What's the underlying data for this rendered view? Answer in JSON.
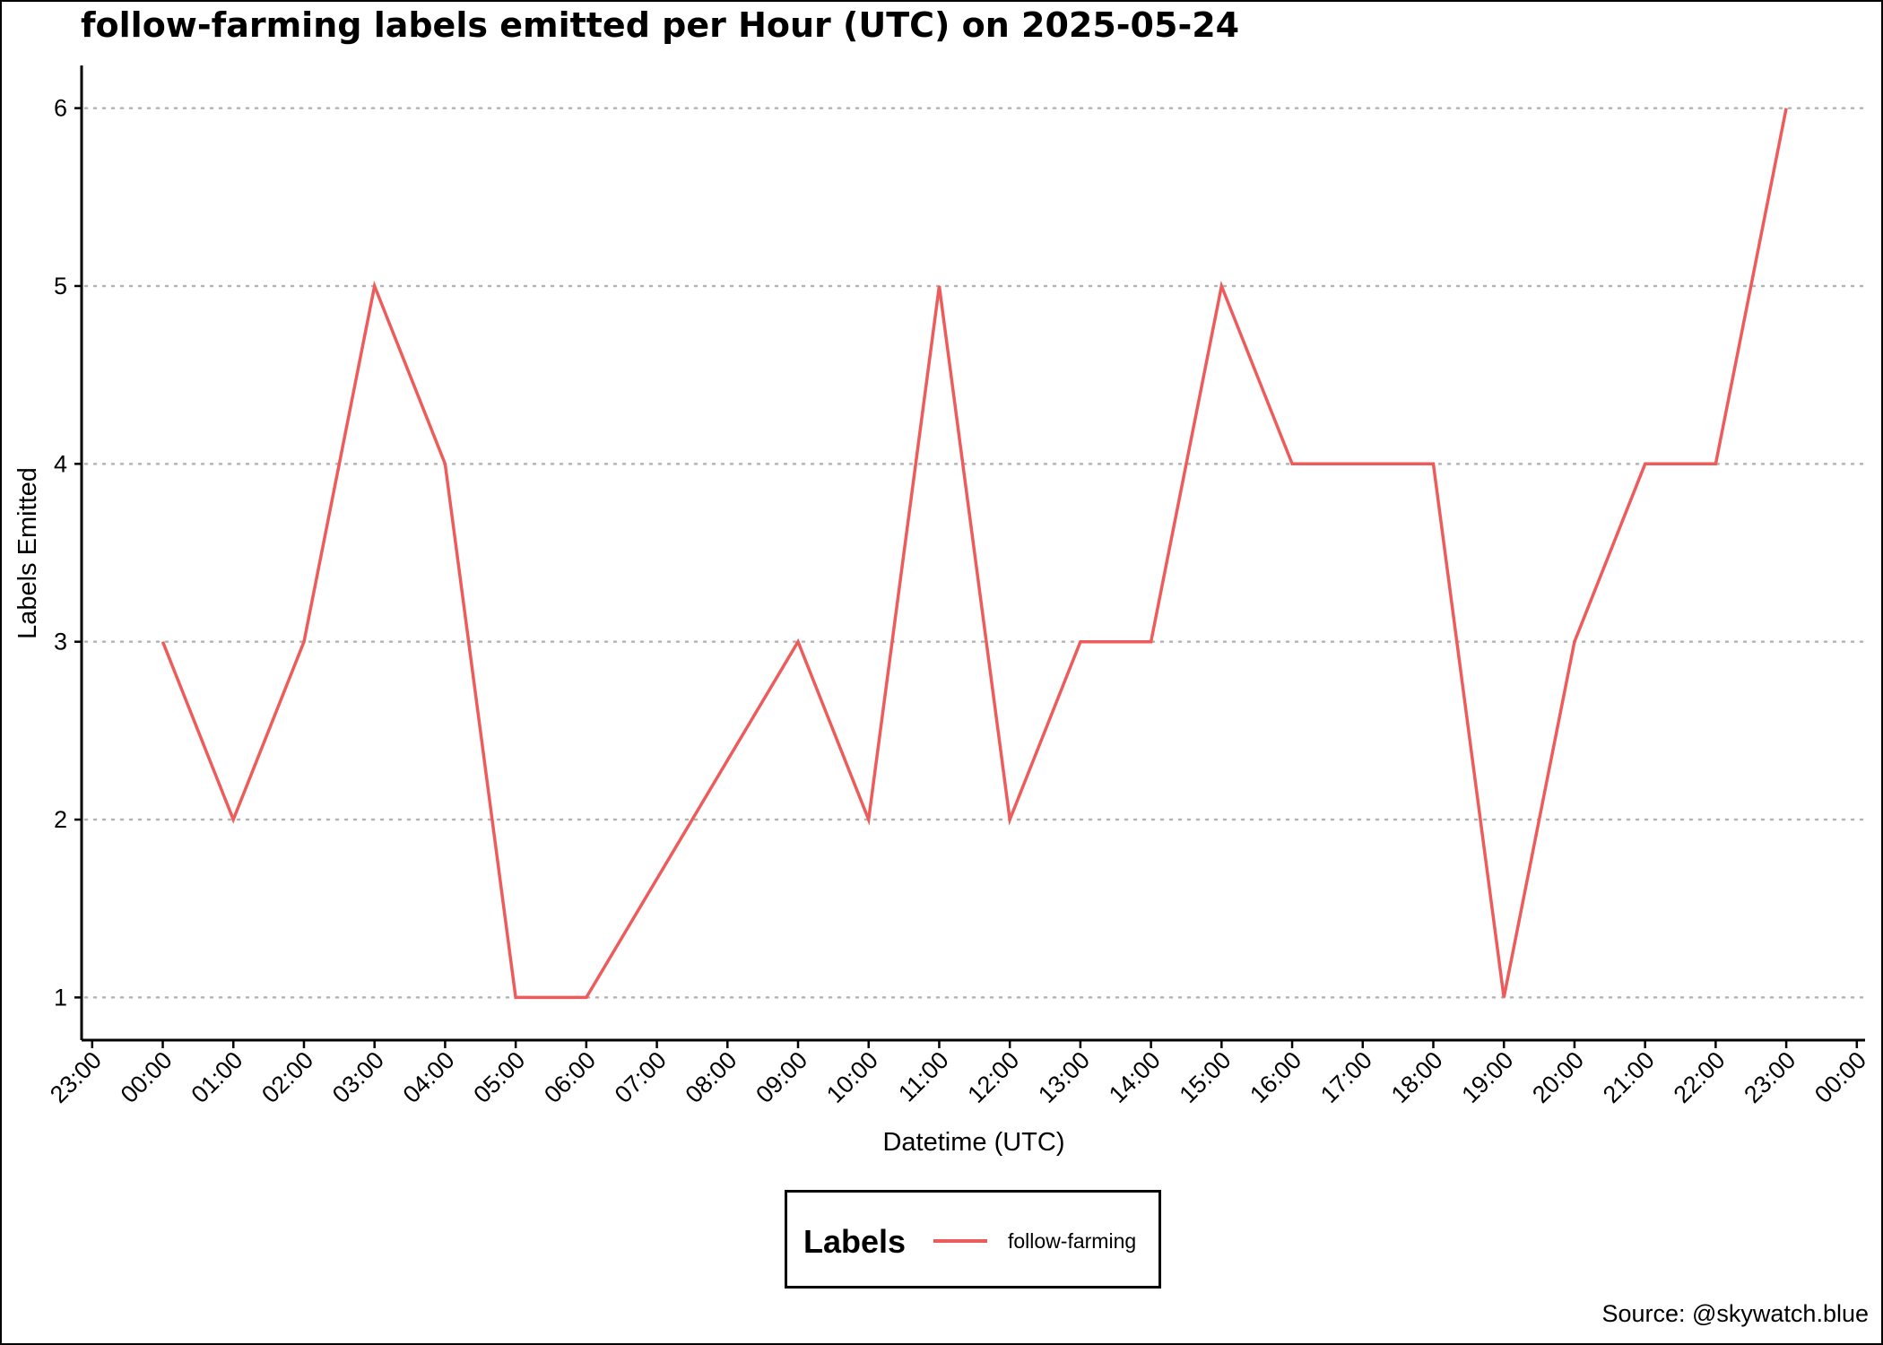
{
  "chart_data": {
    "type": "line",
    "title": "follow-farming labels emitted per Hour (UTC) on 2025-05-24",
    "xlabel": "Datetime (UTC)",
    "ylabel": "Labels Emitted",
    "x_tick_labels": [
      "23:00",
      "00:00",
      "01:00",
      "02:00",
      "03:00",
      "04:00",
      "05:00",
      "06:00",
      "07:00",
      "08:00",
      "09:00",
      "10:00",
      "11:00",
      "12:00",
      "13:00",
      "14:00",
      "15:00",
      "16:00",
      "17:00",
      "18:00",
      "19:00",
      "20:00",
      "21:00",
      "22:00",
      "23:00",
      "00:00"
    ],
    "y_ticks": [
      1,
      2,
      3,
      4,
      5,
      6
    ],
    "ylim": [
      0.76,
      6.24
    ],
    "xlim": [
      "2025-05-23 22:51",
      "2025-05-25 00:07"
    ],
    "grid": "horizontal dotted major lines",
    "legend": {
      "title": "Labels",
      "position": "bottom"
    },
    "series": [
      {
        "name": "follow-farming",
        "color": "#ee5b5b",
        "x": [
          "2025-05-24 00:00",
          "2025-05-24 01:00",
          "2025-05-24 02:00",
          "2025-05-24 03:00",
          "2025-05-24 04:00",
          "2025-05-24 05:00",
          "2025-05-24 06:00",
          "2025-05-24 09:00",
          "2025-05-24 10:00",
          "2025-05-24 11:00",
          "2025-05-24 12:00",
          "2025-05-24 13:00",
          "2025-05-24 14:00",
          "2025-05-24 15:00",
          "2025-05-24 16:00",
          "2025-05-24 17:00",
          "2025-05-24 18:00",
          "2025-05-24 19:00",
          "2025-05-24 20:00",
          "2025-05-24 21:00",
          "2025-05-24 22:00",
          "2025-05-24 23:00"
        ],
        "y": [
          3,
          2,
          3,
          5,
          4,
          1,
          1,
          3,
          2,
          5,
          2,
          3,
          3,
          5,
          4,
          4,
          4,
          1,
          3,
          4,
          4,
          6
        ]
      }
    ]
  },
  "source": "Source: @skywatch.blue"
}
